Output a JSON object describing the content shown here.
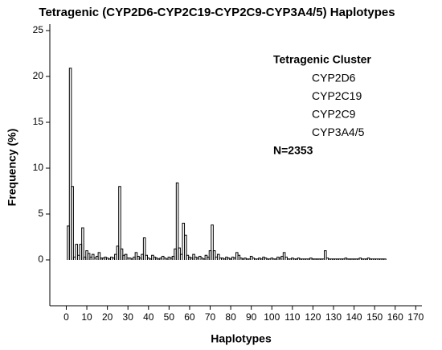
{
  "chart_data": {
    "type": "step",
    "title": "Tetragenic (CYP2D6-CYP2C19-CYP2C9-CYP3A4/5) Haplotypes",
    "xlabel": "Haplotypes",
    "ylabel": "Frequency (%)",
    "legend_title": "Tetragenic Cluster",
    "legend_items": [
      "CYP2D6",
      "CYP2C19",
      "CYP2C9",
      "CYP3A4/5"
    ],
    "annotation": "N=2353",
    "color": "#000000",
    "x": [
      1,
      2,
      3,
      4,
      5,
      6,
      7,
      8,
      9,
      10,
      11,
      12,
      13,
      14,
      15,
      16,
      17,
      18,
      19,
      20,
      21,
      22,
      23,
      24,
      25,
      26,
      27,
      28,
      29,
      30,
      31,
      32,
      33,
      34,
      35,
      36,
      37,
      38,
      39,
      40,
      41,
      42,
      43,
      44,
      45,
      46,
      47,
      48,
      49,
      50,
      51,
      52,
      53,
      54,
      55,
      56,
      57,
      58,
      59,
      60,
      61,
      62,
      63,
      64,
      65,
      66,
      67,
      68,
      69,
      70,
      71,
      72,
      73,
      74,
      75,
      76,
      77,
      78,
      79,
      80,
      81,
      82,
      83,
      84,
      85,
      86,
      87,
      88,
      89,
      90,
      91,
      92,
      93,
      94,
      95,
      96,
      97,
      98,
      99,
      100,
      101,
      102,
      103,
      104,
      105,
      106,
      107,
      108,
      109,
      110,
      111,
      112,
      113,
      114,
      115,
      116,
      117,
      118,
      119,
      120,
      121,
      122,
      123,
      124,
      125,
      126,
      127,
      128,
      129,
      130,
      131,
      132,
      133,
      134,
      135,
      136,
      137,
      138,
      139,
      140,
      141,
      142,
      143,
      144,
      145,
      146,
      147,
      148,
      149,
      150,
      151,
      152,
      153,
      154,
      155
    ],
    "values": [
      3.7,
      20.9,
      8.0,
      0.3,
      1.7,
      0.5,
      1.7,
      3.5,
      0.3,
      1.0,
      0.7,
      0.3,
      0.6,
      0.2,
      0.4,
      0.8,
      0.2,
      0.2,
      0.3,
      0.2,
      0.1,
      0.3,
      0.2,
      0.6,
      1.5,
      8.0,
      1.2,
      0.5,
      0.6,
      0.2,
      0.2,
      0.1,
      0.3,
      0.8,
      0.4,
      0.2,
      0.6,
      2.4,
      0.5,
      0.2,
      0.1,
      0.5,
      0.3,
      0.2,
      0.1,
      0.2,
      0.4,
      0.2,
      0.1,
      0.3,
      0.2,
      0.4,
      1.2,
      8.4,
      1.3,
      0.6,
      4.0,
      2.7,
      0.5,
      0.3,
      0.2,
      0.6,
      0.3,
      0.2,
      0.4,
      0.2,
      0.1,
      0.5,
      0.3,
      1.0,
      3.8,
      1.0,
      0.3,
      0.6,
      0.2,
      0.2,
      0.1,
      0.3,
      0.2,
      0.1,
      0.3,
      0.2,
      0.8,
      0.5,
      0.2,
      0.1,
      0.2,
      0.1,
      0.1,
      0.4,
      0.2,
      0.1,
      0.1,
      0.2,
      0.1,
      0.3,
      0.2,
      0.1,
      0.1,
      0.2,
      0.1,
      0.1,
      0.3,
      0.2,
      0.4,
      0.8,
      0.3,
      0.1,
      0.1,
      0.2,
      0.1,
      0.1,
      0.2,
      0.1,
      0.1,
      0.1,
      0.1,
      0.1,
      0.2,
      0.1,
      0.1,
      0.1,
      0.1,
      0.1,
      0.1,
      1.0,
      0.2,
      0.1,
      0.1,
      0.1,
      0.1,
      0.1,
      0.1,
      0.1,
      0.1,
      0.2,
      0.1,
      0.1,
      0.1,
      0.1,
      0.1,
      0.1,
      0.2,
      0.1,
      0.1,
      0.1,
      0.2,
      0.1,
      0.1,
      0.1,
      0.1,
      0.1,
      0.1,
      0.1,
      0.1
    ],
    "xlim": [
      -8,
      173
    ],
    "xticks": [
      0,
      10,
      20,
      30,
      40,
      50,
      60,
      70,
      80,
      90,
      100,
      110,
      120,
      130,
      140,
      150,
      160,
      170
    ],
    "ylim": [
      -5,
      25
    ],
    "yticks": [
      0,
      5,
      10,
      15,
      20,
      25
    ]
  }
}
